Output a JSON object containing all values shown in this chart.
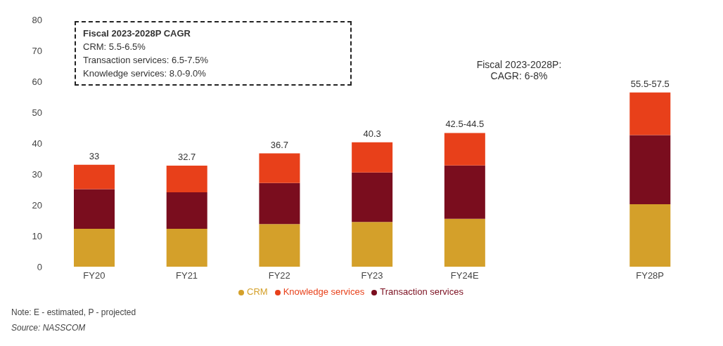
{
  "chart_data": {
    "type": "bar",
    "stacked": true,
    "categories": [
      "FY20",
      "FY21",
      "FY22",
      "FY23",
      "FY24E",
      null,
      "FY28P"
    ],
    "series": [
      {
        "name": "CRM",
        "color": "#d4a02a",
        "values": [
          12.3,
          12.3,
          13.8,
          14.5,
          15.5,
          null,
          20.2
        ]
      },
      {
        "name": "Transaction services",
        "color": "#7a0d1e",
        "values": [
          12.8,
          11.8,
          13.3,
          16.0,
          17.3,
          null,
          22.4
        ]
      },
      {
        "name": "Knowledge services",
        "color": "#e8401a",
        "values": [
          7.9,
          8.6,
          9.6,
          9.8,
          10.5,
          null,
          13.8
        ]
      }
    ],
    "totals": [
      "33",
      "32.7",
      "36.7",
      "40.3",
      "42.5-44.5",
      null,
      "55.5-57.5"
    ],
    "ylim": [
      0,
      80
    ],
    "yticks": [
      0,
      10,
      20,
      30,
      40,
      50,
      60,
      70,
      80
    ],
    "grid": false,
    "legend": "bottom",
    "marker": "circle",
    "annotations": [
      "Fiscal 2023-2028P CAGR",
      "CRM: 5.5-6.5%",
      "Transaction services: 6.5-7.5%",
      "Knowledge services: 8.0-9.0%",
      "Fiscal 2023-2028P:\nCAGR: 6-8%",
      "Note: E - estimated, P - projected",
      "Source: NASSCOM"
    ]
  }
}
